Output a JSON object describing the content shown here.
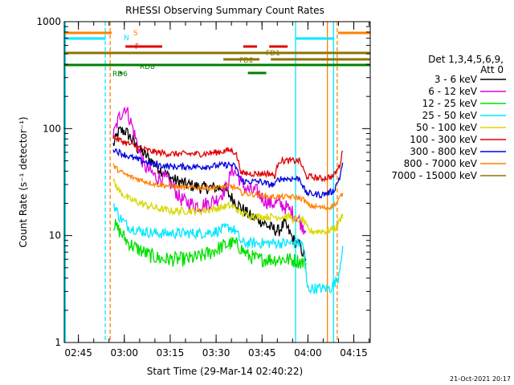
{
  "chart_data": {
    "type": "line",
    "title": "RHESSI Observing Summary Count Rates",
    "xlabel": "Start Time (29-Mar-14 02:40:22)",
    "ylabel": "Count Rate (s⁻¹ detector⁻¹)",
    "footer": "21-Oct-2021 20:17",
    "y_log": true,
    "ylim": [
      1,
      1000
    ],
    "xlim_minutes": [
      0,
      100
    ],
    "xticks": [
      {
        "label": "02:45",
        "min": 4.63
      },
      {
        "label": "03:00",
        "min": 19.63
      },
      {
        "label": "03:15",
        "min": 34.63
      },
      {
        "label": "03:30",
        "min": 49.63
      },
      {
        "label": "03:45",
        "min": 64.63
      },
      {
        "label": "04:00",
        "min": 79.63
      },
      {
        "label": "04:15",
        "min": 94.63
      }
    ],
    "yticks": [
      {
        "label": "1",
        "v": 1
      },
      {
        "label": "10",
        "v": 10
      },
      {
        "label": "100",
        "v": 100
      },
      {
        "label": "1000",
        "v": 1000
      }
    ],
    "legend": {
      "header": [
        "Det 1,3,4,5,6,9,",
        "Att 0"
      ],
      "placement": "right",
      "entries": [
        {
          "label": "3 - 6 keV",
          "color": "#000000"
        },
        {
          "label": "6 - 12 keV",
          "color": "#e000e0"
        },
        {
          "label": "12 - 25 keV",
          "color": "#00e000"
        },
        {
          "label": "25 - 50 keV",
          "color": "#00e8ff"
        },
        {
          "label": "50 - 100 keV",
          "color": "#d8d800"
        },
        {
          "label": "100 - 300 keV",
          "color": "#e00000"
        },
        {
          "label": "300 - 800 keV",
          "color": "#0000e0"
        },
        {
          "label": "800 - 7000 keV",
          "color": "#ff8000"
        },
        {
          "label": "7000 - 15000 keV",
          "color": "#8b7500"
        }
      ]
    },
    "flag_labels": [
      {
        "label": "S",
        "color": "#ff8000"
      },
      {
        "label": "N",
        "color": "#00e8ff"
      },
      {
        "label": "F",
        "color": "#e00000"
      },
      {
        "label": "FD1",
        "color": "#8b7500"
      },
      {
        "label": "FD2",
        "color": "#8b7500"
      },
      {
        "label": "RD8",
        "color": "#008000"
      },
      {
        "label": "RD6",
        "color": "#008000"
      }
    ],
    "vlines": [
      {
        "min": 13.4,
        "color": "#00e8ff",
        "style": "dashed"
      },
      {
        "min": 15.0,
        "color": "#ff8000",
        "style": "dashed"
      },
      {
        "min": 75.6,
        "color": "#00e8ff",
        "style": "solid"
      },
      {
        "min": 86.0,
        "color": "#ff8000",
        "style": "solid"
      },
      {
        "min": 88.0,
        "color": "#00e8ff",
        "style": "solid"
      },
      {
        "min": 89.2,
        "color": "#ff8000",
        "style": "dashed"
      }
    ],
    "series": [
      {
        "name": "3 - 6 keV",
        "color": "#000000",
        "noise": 0.06,
        "points": [
          [
            16,
            70
          ],
          [
            18,
            95
          ],
          [
            20,
            95
          ],
          [
            22,
            80
          ],
          [
            24,
            65
          ],
          [
            27,
            55
          ],
          [
            30,
            45
          ],
          [
            33,
            38
          ],
          [
            36,
            33
          ],
          [
            40,
            30
          ],
          [
            45,
            28
          ],
          [
            49,
            28
          ],
          [
            52,
            28
          ],
          [
            55,
            22
          ],
          [
            58,
            18
          ],
          [
            61,
            15
          ],
          [
            64,
            14
          ],
          [
            67,
            12
          ],
          [
            70,
            11
          ],
          [
            72,
            13
          ],
          [
            75,
            9
          ],
          [
            77,
            8
          ],
          [
            79,
            6
          ]
        ]
      },
      {
        "name": "6 - 12 keV",
        "color": "#e000e0",
        "noise": 0.07,
        "points": [
          [
            16,
            85
          ],
          [
            18,
            130
          ],
          [
            20,
            160
          ],
          [
            22,
            110
          ],
          [
            24,
            70
          ],
          [
            26,
            45
          ],
          [
            28,
            40
          ],
          [
            30,
            35
          ],
          [
            33,
            34
          ],
          [
            35,
            30
          ],
          [
            38,
            22
          ],
          [
            41,
            20
          ],
          [
            44,
            19
          ],
          [
            47,
            20
          ],
          [
            50,
            22
          ],
          [
            53,
            28
          ],
          [
            55,
            42
          ],
          [
            57,
            35
          ],
          [
            59,
            28
          ],
          [
            61,
            26
          ],
          [
            63,
            26
          ],
          [
            65,
            22
          ],
          [
            67,
            20
          ],
          [
            70,
            20
          ],
          [
            73,
            18
          ],
          [
            76,
            15
          ],
          [
            79,
            11
          ]
        ]
      },
      {
        "name": "12 - 25 keV",
        "color": "#00e000",
        "noise": 0.07,
        "points": [
          [
            16,
            13
          ],
          [
            18,
            11
          ],
          [
            21,
            8.5
          ],
          [
            24,
            7.5
          ],
          [
            28,
            6.5
          ],
          [
            32,
            6
          ],
          [
            36,
            6
          ],
          [
            40,
            6
          ],
          [
            44,
            6.3
          ],
          [
            48,
            7
          ],
          [
            52,
            8
          ],
          [
            55,
            8.5
          ],
          [
            57,
            8
          ],
          [
            60,
            6.5
          ],
          [
            63,
            6
          ],
          [
            67,
            6
          ],
          [
            70,
            6
          ],
          [
            73,
            6
          ],
          [
            76,
            5.8
          ],
          [
            79,
            5.5
          ]
        ]
      },
      {
        "name": "25 - 50 keV",
        "color": "#00e8ff",
        "noise": 0.05,
        "points": [
          [
            16,
            20
          ],
          [
            18,
            15
          ],
          [
            21,
            12
          ],
          [
            25,
            11
          ],
          [
            30,
            10.5
          ],
          [
            35,
            10.5
          ],
          [
            40,
            10.5
          ],
          [
            45,
            10.5
          ],
          [
            50,
            11
          ],
          [
            54,
            12
          ],
          [
            56,
            11
          ],
          [
            58,
            8.5
          ],
          [
            62,
            8.5
          ],
          [
            66,
            8.5
          ],
          [
            70,
            8.5
          ],
          [
            74,
            8.5
          ],
          [
            77,
            8.5
          ],
          [
            78,
            8.5
          ],
          [
            79.5,
            3.2
          ],
          [
            82,
            3.2
          ],
          [
            87,
            3.2
          ],
          [
            89.5,
            4
          ],
          [
            91,
            8
          ]
        ]
      },
      {
        "name": "50 - 100 keV",
        "color": "#d8d800",
        "noise": 0.035,
        "points": [
          [
            16,
            32
          ],
          [
            18,
            26
          ],
          [
            21,
            22
          ],
          [
            25,
            20
          ],
          [
            30,
            18
          ],
          [
            35,
            17
          ],
          [
            40,
            17
          ],
          [
            45,
            17
          ],
          [
            50,
            18
          ],
          [
            54,
            19
          ],
          [
            56,
            18
          ],
          [
            58,
            16
          ],
          [
            63,
            15
          ],
          [
            68,
            15
          ],
          [
            72,
            15
          ],
          [
            74,
            15
          ],
          [
            75,
            14
          ],
          [
            78,
            14
          ],
          [
            80,
            11
          ],
          [
            86,
            11
          ],
          [
            89,
            12
          ],
          [
            91,
            16
          ]
        ]
      },
      {
        "name": "100 - 300 keV",
        "color": "#e00000",
        "noise": 0.03,
        "points": [
          [
            16,
            85
          ],
          [
            18,
            78
          ],
          [
            21,
            72
          ],
          [
            25,
            65
          ],
          [
            30,
            60
          ],
          [
            35,
            58
          ],
          [
            40,
            58
          ],
          [
            45,
            58
          ],
          [
            50,
            60
          ],
          [
            54,
            63
          ],
          [
            56,
            60
          ],
          [
            58,
            38
          ],
          [
            61,
            38
          ],
          [
            64,
            38
          ],
          [
            67,
            38
          ],
          [
            69,
            36
          ],
          [
            70,
            50
          ],
          [
            75,
            50
          ],
          [
            77,
            50
          ],
          [
            79,
            36
          ],
          [
            84,
            34
          ],
          [
            88,
            36
          ],
          [
            90,
            45
          ],
          [
            91,
            62
          ]
        ]
      },
      {
        "name": "300 - 800 keV",
        "color": "#0000e0",
        "noise": 0.03,
        "points": [
          [
            16,
            65
          ],
          [
            18,
            60
          ],
          [
            21,
            55
          ],
          [
            25,
            50
          ],
          [
            30,
            46
          ],
          [
            35,
            44
          ],
          [
            40,
            44
          ],
          [
            45,
            44
          ],
          [
            50,
            45
          ],
          [
            54,
            46
          ],
          [
            56,
            44
          ],
          [
            58,
            32
          ],
          [
            61,
            32
          ],
          [
            64,
            32
          ],
          [
            67,
            30
          ],
          [
            69,
            30
          ],
          [
            70,
            34
          ],
          [
            75,
            34
          ],
          [
            77,
            34
          ],
          [
            79,
            25
          ],
          [
            84,
            24
          ],
          [
            88,
            26
          ],
          [
            90,
            35
          ],
          [
            91,
            48
          ]
        ]
      },
      {
        "name": "800 - 7000 keV",
        "color": "#ff8000",
        "noise": 0.025,
        "points": [
          [
            16,
            45
          ],
          [
            18,
            40
          ],
          [
            21,
            36
          ],
          [
            25,
            33
          ],
          [
            30,
            30
          ],
          [
            35,
            29
          ],
          [
            40,
            28
          ],
          [
            45,
            28
          ],
          [
            50,
            28
          ],
          [
            54,
            29
          ],
          [
            56,
            28
          ],
          [
            58,
            25
          ],
          [
            63,
            24
          ],
          [
            67,
            23
          ],
          [
            70,
            23
          ],
          [
            75,
            23
          ],
          [
            78,
            22
          ],
          [
            80,
            19
          ],
          [
            86,
            18
          ],
          [
            89,
            20
          ],
          [
            91,
            25
          ]
        ]
      },
      {
        "name": "7000 - 15000 keV",
        "color": "#8b7500",
        "noise": 0,
        "points": []
      }
    ]
  }
}
